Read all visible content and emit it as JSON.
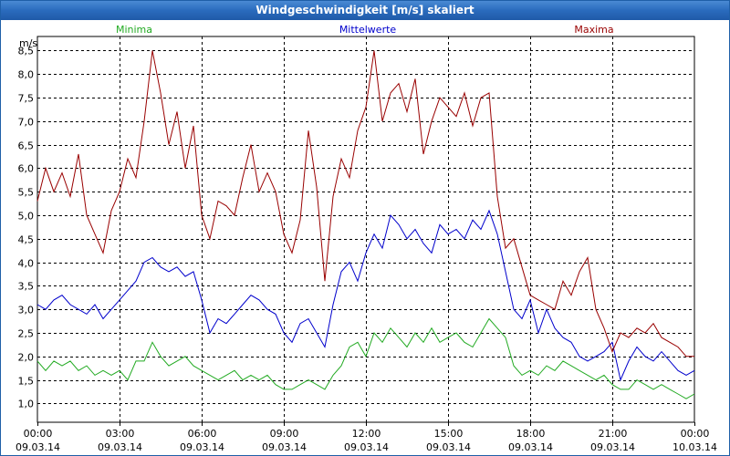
{
  "window": {
    "title": "Windgeschwindigkeit [m/s] skaliert"
  },
  "colors": {
    "min": "#22aa22",
    "mean": "#0000cc",
    "max": "#990000",
    "grid": "#000000"
  },
  "chart_data": {
    "type": "line",
    "title": "Windgeschwindigkeit [m/s] skaliert",
    "ylabel": "m/s",
    "xlabel": "",
    "ylim": [
      0.6,
      8.8
    ],
    "xlim": [
      0,
      24
    ],
    "grid": true,
    "yticks": [
      "1,0",
      "1,5",
      "2,0",
      "2,5",
      "3,0",
      "3,5",
      "4,0",
      "4,5",
      "5,0",
      "5,5",
      "6,0",
      "6,5",
      "7,0",
      "7,5",
      "8,0",
      "8,5"
    ],
    "ytick_values": [
      1.0,
      1.5,
      2.0,
      2.5,
      3.0,
      3.5,
      4.0,
      4.5,
      5.0,
      5.5,
      6.0,
      6.5,
      7.0,
      7.5,
      8.0,
      8.5
    ],
    "xticks": [
      {
        "t": 0,
        "time": "00:00",
        "date": "09.03.14"
      },
      {
        "t": 3,
        "time": "03:00",
        "date": "09.03.14"
      },
      {
        "t": 6,
        "time": "06:00",
        "date": "09.03.14"
      },
      {
        "t": 9,
        "time": "09:00",
        "date": "09.03.14"
      },
      {
        "t": 12,
        "time": "12:00",
        "date": "09.03.14"
      },
      {
        "t": 15,
        "time": "15:00",
        "date": "09.03.14"
      },
      {
        "t": 18,
        "time": "18:00",
        "date": "09.03.14"
      },
      {
        "t": 21,
        "time": "21:00",
        "date": "09.03.14"
      },
      {
        "t": 24,
        "time": "00:00",
        "date": "10.03.14"
      }
    ],
    "series": [
      {
        "name": "Minima",
        "key": "min",
        "x": [
          0,
          0.3,
          0.6,
          0.9,
          1.2,
          1.5,
          1.8,
          2.1,
          2.4,
          2.7,
          3.0,
          3.3,
          3.6,
          3.9,
          4.2,
          4.5,
          4.8,
          5.1,
          5.4,
          5.7,
          6.0,
          6.3,
          6.6,
          6.9,
          7.2,
          7.5,
          7.8,
          8.1,
          8.4,
          8.7,
          9.0,
          9.3,
          9.6,
          9.9,
          10.2,
          10.5,
          10.8,
          11.1,
          11.4,
          11.7,
          12.0,
          12.3,
          12.6,
          12.9,
          13.2,
          13.5,
          13.8,
          14.1,
          14.4,
          14.7,
          15.0,
          15.3,
          15.6,
          15.9,
          16.2,
          16.5,
          16.8,
          17.1,
          17.4,
          17.7,
          18.0,
          18.3,
          18.6,
          18.9,
          19.2,
          19.5,
          19.8,
          20.1,
          20.4,
          20.7,
          21.0,
          21.3,
          21.6,
          21.9,
          22.2,
          22.5,
          22.8,
          23.1,
          23.4,
          23.7,
          24.0
        ],
        "values": [
          1.9,
          1.7,
          1.9,
          1.8,
          1.9,
          1.7,
          1.8,
          1.6,
          1.7,
          1.6,
          1.7,
          1.5,
          1.9,
          1.9,
          2.3,
          2.0,
          1.8,
          1.9,
          2.0,
          1.8,
          1.7,
          1.6,
          1.5,
          1.6,
          1.7,
          1.5,
          1.6,
          1.5,
          1.6,
          1.4,
          1.3,
          1.3,
          1.4,
          1.5,
          1.4,
          1.3,
          1.6,
          1.8,
          2.2,
          2.3,
          2.0,
          2.5,
          2.3,
          2.6,
          2.4,
          2.2,
          2.5,
          2.3,
          2.6,
          2.3,
          2.4,
          2.5,
          2.3,
          2.2,
          2.5,
          2.8,
          2.6,
          2.4,
          1.8,
          1.6,
          1.7,
          1.6,
          1.8,
          1.7,
          1.9,
          1.8,
          1.7,
          1.6,
          1.5,
          1.6,
          1.4,
          1.3,
          1.3,
          1.5,
          1.4,
          1.3,
          1.4,
          1.3,
          1.2,
          1.1,
          1.2
        ]
      },
      {
        "name": "Mittelwerte",
        "key": "mean",
        "x": [
          0,
          0.3,
          0.6,
          0.9,
          1.2,
          1.5,
          1.8,
          2.1,
          2.4,
          2.7,
          3.0,
          3.3,
          3.6,
          3.9,
          4.2,
          4.5,
          4.8,
          5.1,
          5.4,
          5.7,
          6.0,
          6.3,
          6.6,
          6.9,
          7.2,
          7.5,
          7.8,
          8.1,
          8.4,
          8.7,
          9.0,
          9.3,
          9.6,
          9.9,
          10.2,
          10.5,
          10.8,
          11.1,
          11.4,
          11.7,
          12.0,
          12.3,
          12.6,
          12.9,
          13.2,
          13.5,
          13.8,
          14.1,
          14.4,
          14.7,
          15.0,
          15.3,
          15.6,
          15.9,
          16.2,
          16.5,
          16.8,
          17.1,
          17.4,
          17.7,
          18.0,
          18.3,
          18.6,
          18.9,
          19.2,
          19.5,
          19.8,
          20.1,
          20.4,
          20.7,
          21.0,
          21.3,
          21.6,
          21.9,
          22.2,
          22.5,
          22.8,
          23.1,
          23.4,
          23.7,
          24.0
        ],
        "values": [
          3.1,
          3.0,
          3.2,
          3.3,
          3.1,
          3.0,
          2.9,
          3.1,
          2.8,
          3.0,
          3.2,
          3.4,
          3.6,
          4.0,
          4.1,
          3.9,
          3.8,
          3.9,
          3.7,
          3.8,
          3.2,
          2.5,
          2.8,
          2.7,
          2.9,
          3.1,
          3.3,
          3.2,
          3.0,
          2.9,
          2.5,
          2.3,
          2.7,
          2.8,
          2.5,
          2.2,
          3.1,
          3.8,
          4.0,
          3.6,
          4.2,
          4.6,
          4.3,
          5.0,
          4.8,
          4.5,
          4.7,
          4.4,
          4.2,
          4.8,
          4.6,
          4.7,
          4.5,
          4.9,
          4.7,
          5.1,
          4.6,
          3.8,
          3.0,
          2.8,
          3.2,
          2.5,
          3.0,
          2.6,
          2.4,
          2.3,
          2.0,
          1.9,
          2.0,
          2.1,
          2.3,
          1.5,
          1.9,
          2.2,
          2.0,
          1.9,
          2.1,
          1.9,
          1.7,
          1.6,
          1.7
        ]
      },
      {
        "name": "Maxima",
        "key": "max",
        "x": [
          0,
          0.3,
          0.6,
          0.9,
          1.2,
          1.5,
          1.8,
          2.1,
          2.4,
          2.7,
          3.0,
          3.3,
          3.6,
          3.9,
          4.2,
          4.5,
          4.8,
          5.1,
          5.4,
          5.7,
          6.0,
          6.3,
          6.6,
          6.9,
          7.2,
          7.5,
          7.8,
          8.1,
          8.4,
          8.7,
          9.0,
          9.3,
          9.6,
          9.9,
          10.2,
          10.5,
          10.8,
          11.1,
          11.4,
          11.7,
          12.0,
          12.3,
          12.6,
          12.9,
          13.2,
          13.5,
          13.8,
          14.1,
          14.4,
          14.7,
          15.0,
          15.3,
          15.6,
          15.9,
          16.2,
          16.5,
          16.8,
          17.1,
          17.4,
          17.7,
          18.0,
          18.3,
          18.6,
          18.9,
          19.2,
          19.5,
          19.8,
          20.1,
          20.4,
          20.7,
          21.0,
          21.3,
          21.6,
          21.9,
          22.2,
          22.5,
          22.8,
          23.1,
          23.4,
          23.7,
          24.0
        ],
        "values": [
          5.3,
          6.0,
          5.5,
          5.9,
          5.4,
          6.3,
          5.0,
          4.6,
          4.2,
          5.1,
          5.5,
          6.2,
          5.8,
          7.0,
          8.5,
          7.6,
          6.5,
          7.2,
          6.0,
          6.9,
          5.0,
          4.5,
          5.3,
          5.2,
          5.0,
          5.8,
          6.5,
          5.5,
          5.9,
          5.5,
          4.6,
          4.2,
          4.9,
          6.8,
          5.6,
          3.6,
          5.4,
          6.2,
          5.8,
          6.8,
          7.3,
          8.5,
          7.0,
          7.6,
          7.8,
          7.2,
          7.9,
          6.3,
          7.0,
          7.5,
          7.3,
          7.1,
          7.6,
          6.9,
          7.5,
          7.6,
          5.4,
          4.3,
          4.5,
          3.9,
          3.3,
          3.2,
          3.1,
          3.0,
          3.6,
          3.3,
          3.8,
          4.1,
          3.0,
          2.6,
          2.1,
          2.5,
          2.4,
          2.6,
          2.5,
          2.7,
          2.4,
          2.3,
          2.2,
          2.0,
          2.0
        ]
      }
    ]
  }
}
